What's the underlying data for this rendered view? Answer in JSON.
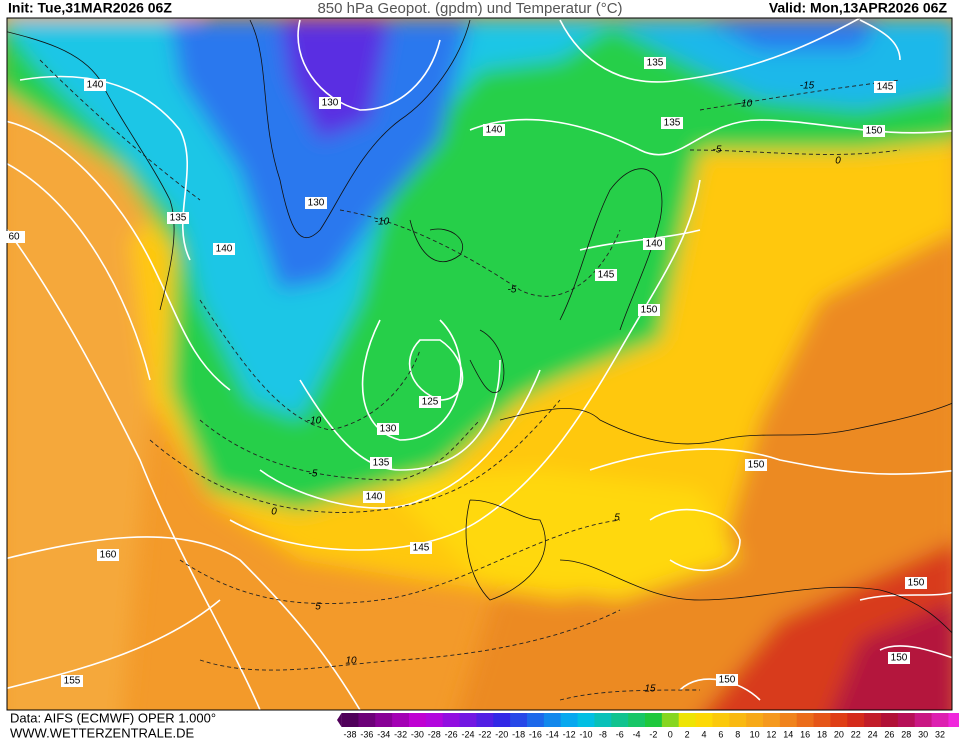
{
  "header": {
    "init": "Init: Tue,31MAR2026 06Z",
    "title": "850 hPa Geopot. (gpdm) und Temperatur (°C)",
    "valid": "Valid: Mon,13APR2026 06Z"
  },
  "map": {
    "height_labels": [
      140,
      130,
      135,
      145,
      150,
      135,
      140,
      135,
      130,
      140,
      140,
      145,
      150,
      125,
      130,
      135,
      140,
      145,
      150,
      160,
      150,
      150,
      150,
      155,
      60
    ],
    "temperature_labels": [
      -10,
      -15,
      -5,
      0,
      -10,
      -5,
      -10,
      -5,
      0,
      5,
      5,
      10,
      15
    ]
  },
  "footer": {
    "source": "Data: AIFS (ECMWF) OPER 1.000°",
    "website": "WWW.WETTERZENTRALE.DE"
  },
  "legend": {
    "labels": [
      -38,
      -36,
      -34,
      -32,
      -30,
      -28,
      -26,
      -24,
      -22,
      -20,
      -18,
      -16,
      -14,
      -12,
      -10,
      -8,
      -6,
      -4,
      -2,
      0,
      2,
      4,
      6,
      8,
      10,
      12,
      14,
      16,
      18,
      20,
      22,
      24,
      26,
      28,
      30,
      32
    ]
  }
}
